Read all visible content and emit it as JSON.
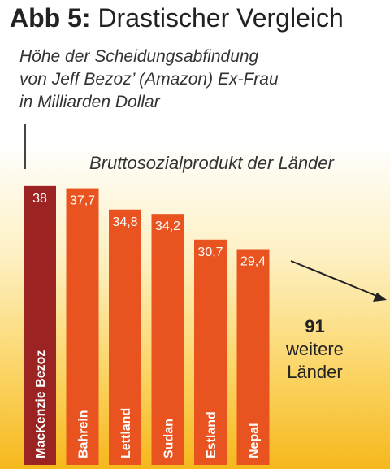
{
  "header": {
    "title_bold": "Abb 5:",
    "title_rest": " Drastischer Vergleich",
    "subtitle_lines": [
      "Höhe der Scheidungsabfindung",
      "von Jeff Bezoz’ (Amazon) Ex-Frau",
      "in Milliarden Dollar"
    ]
  },
  "annotation": "Bruttosozialprodukt der Länder",
  "more": {
    "count": "91",
    "line1": "weitere",
    "line2": "Länder"
  },
  "colors": {
    "highlight": "#9b2322",
    "bar": "#e85320",
    "arrow": "#222222"
  },
  "chart_data": {
    "type": "bar",
    "categories": [
      "MacKenzie Bezoz",
      "Bahrein",
      "Lettland",
      "Sudan",
      "Estland",
      "Nepal"
    ],
    "values": [
      38,
      37.7,
      34.8,
      34.2,
      30.7,
      29.4
    ],
    "value_labels": [
      "38",
      "37,7",
      "34,8",
      "34,2",
      "30,7",
      "29,4"
    ],
    "highlight_index": 0,
    "title": "Abb 5: Drastischer Vergleich",
    "annotations": [
      "Bruttosozialprodukt der Länder",
      "91 weitere Länder"
    ]
  }
}
